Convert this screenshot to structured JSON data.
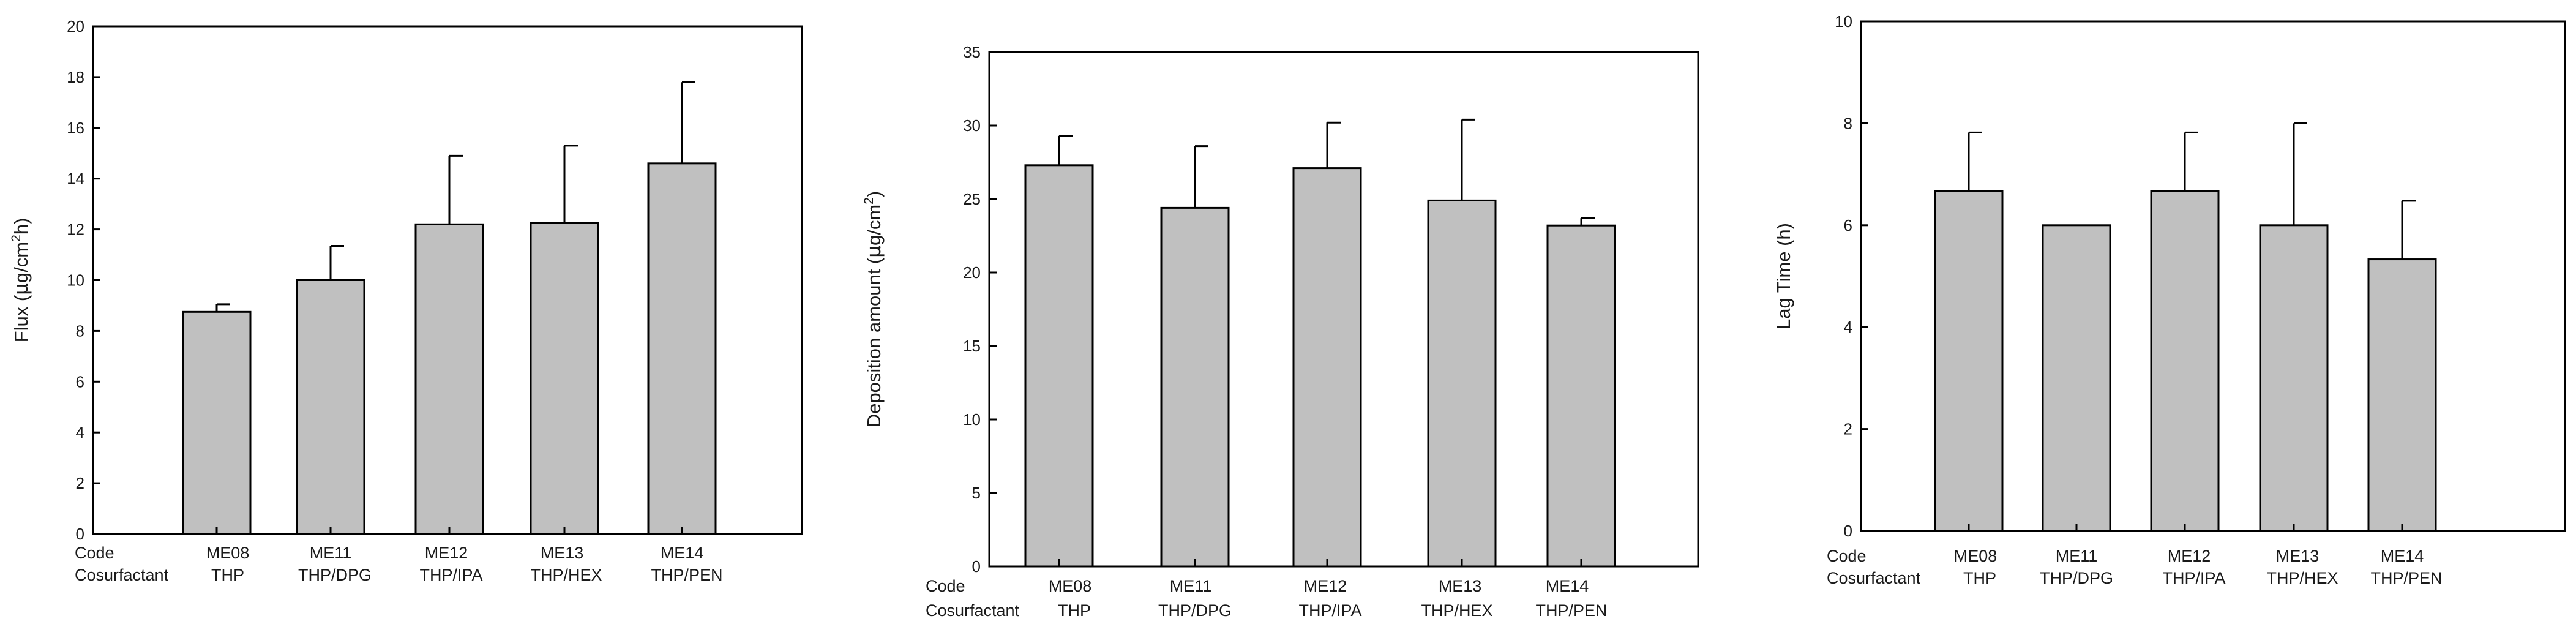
{
  "figure": {
    "bar_color": "#c0c0c0",
    "bar_stroke": "#000000",
    "row_labels": {
      "code": "Code",
      "cosurfactant": "Cosurfactant"
    }
  },
  "chart_data": [
    {
      "type": "bar",
      "ylabel": {
        "pre": "Flux (",
        "mu": "µ",
        "mid": "g/cm",
        "sup": "2",
        "post": "h)"
      },
      "ylim": [
        0,
        20
      ],
      "yticks": [
        0,
        2,
        4,
        6,
        8,
        10,
        12,
        14,
        16,
        18,
        20
      ],
      "grid": false,
      "categories": [
        "ME08",
        "ME11",
        "ME12",
        "ME13",
        "ME14"
      ],
      "cosurfactants": [
        "THP",
        "THP/DPG",
        "THP/IPA",
        "THP/HEX",
        "THP/PEN"
      ],
      "values": [
        8.75,
        10.0,
        12.2,
        12.25,
        14.6
      ],
      "errors": [
        0.3,
        1.35,
        2.7,
        3.05,
        3.2
      ]
    },
    {
      "type": "bar",
      "ylabel": {
        "pre": "Deposition amount (",
        "mu": "µ",
        "mid": "g/cm",
        "sup": "2",
        "post": ")"
      },
      "ylim": [
        0,
        35
      ],
      "yticks": [
        0,
        5,
        10,
        15,
        20,
        25,
        30,
        35
      ],
      "grid": false,
      "categories": [
        "ME08",
        "ME11",
        "ME12",
        "ME13",
        "ME14"
      ],
      "cosurfactants": [
        "THP",
        "THP/DPG",
        "THP/IPA",
        "THP/HEX",
        "THP/PEN"
      ],
      "values": [
        27.3,
        24.4,
        27.1,
        24.9,
        23.2
      ],
      "errors": [
        2.0,
        4.2,
        3.1,
        5.5,
        0.5
      ]
    },
    {
      "type": "bar",
      "ylabel": {
        "pre": "Lag Time (h)",
        "mu": "",
        "mid": "",
        "sup": "",
        "post": ""
      },
      "ylim": [
        0,
        10
      ],
      "yticks": [
        0,
        2,
        4,
        6,
        8,
        10
      ],
      "grid": false,
      "categories": [
        "ME08",
        "ME11",
        "ME12",
        "ME13",
        "ME14"
      ],
      "cosurfactants": [
        "THP",
        "THP/DPG",
        "THP/IPA",
        "THP/HEX",
        "THP/PEN"
      ],
      "values": [
        6.67,
        6.0,
        6.67,
        6.0,
        5.33
      ],
      "errors": [
        1.15,
        0.0,
        1.15,
        2.0,
        1.15
      ]
    }
  ]
}
